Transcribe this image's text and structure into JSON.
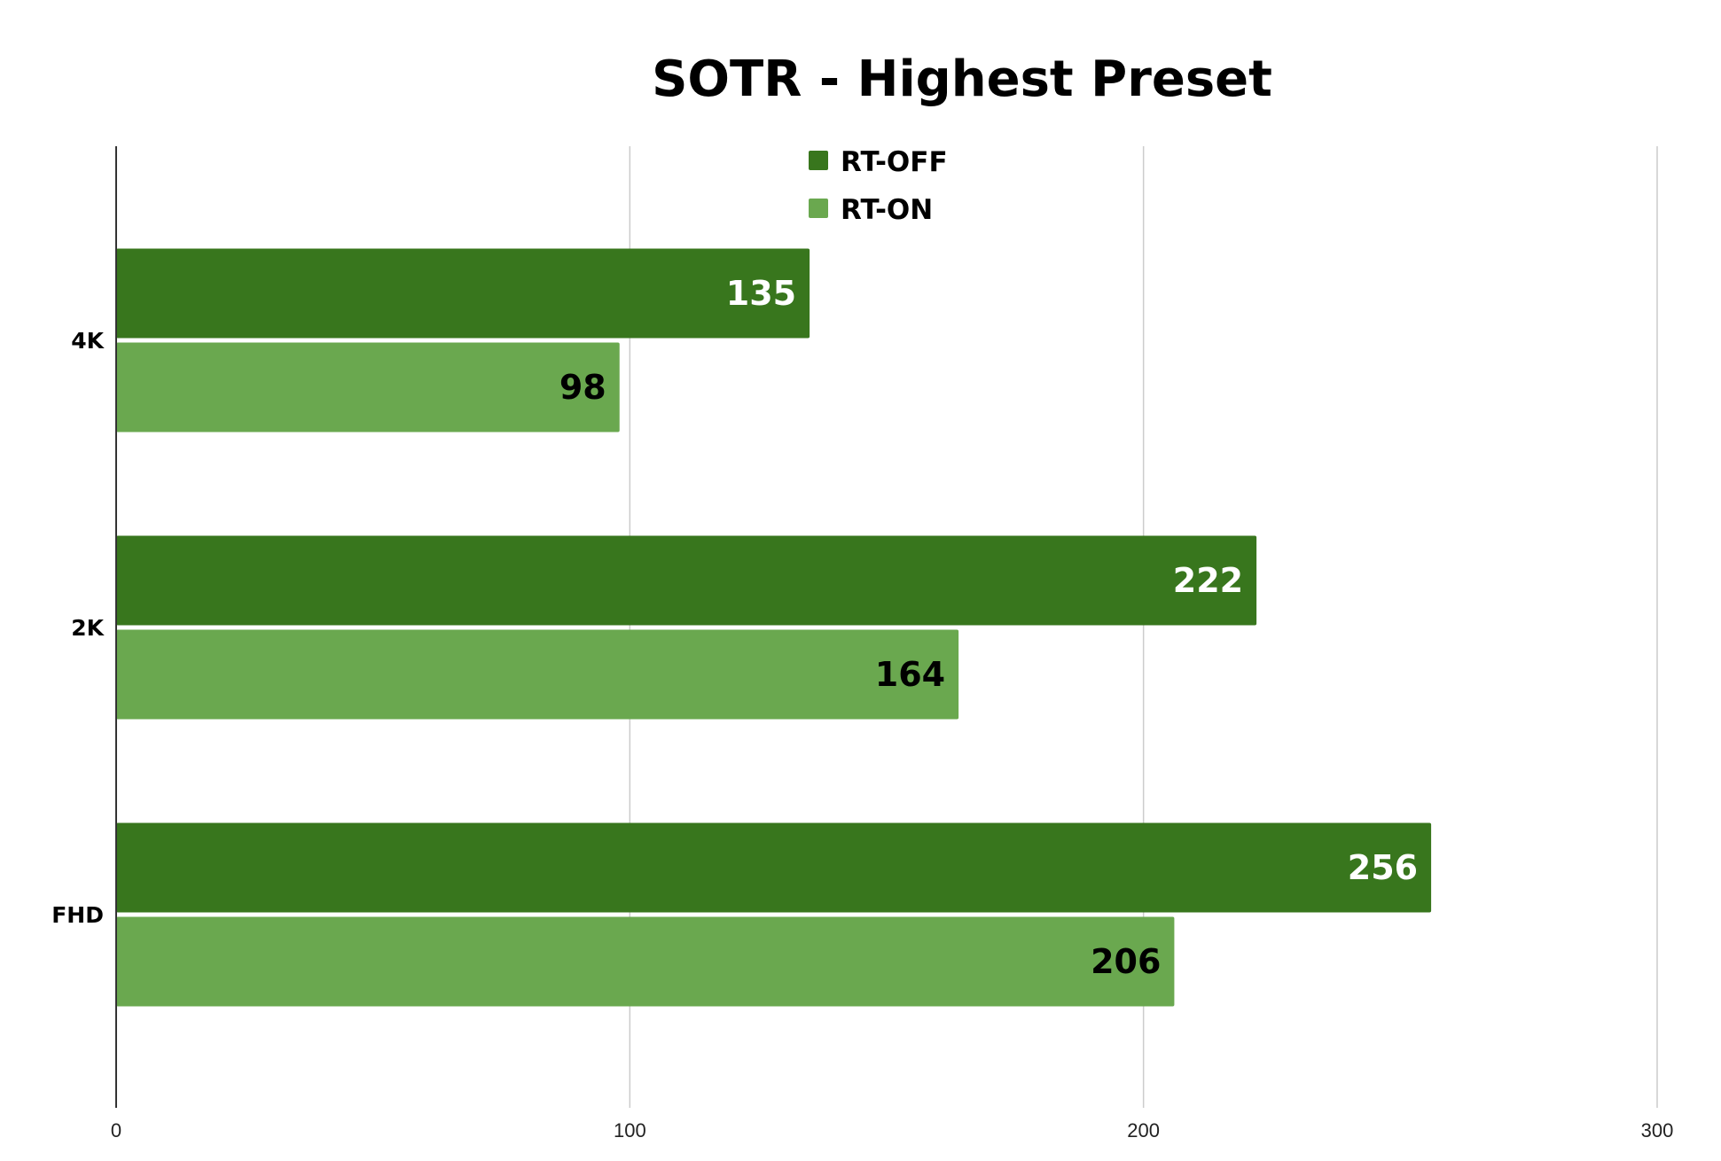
{
  "chart_data": {
    "type": "bar",
    "orientation": "horizontal",
    "title": "SOTR - Highest Preset",
    "xlabel": "",
    "ylabel": "",
    "categories": [
      "4K",
      "2K",
      "FHD"
    ],
    "series": [
      {
        "name": "RT-OFF",
        "values": [
          135,
          222,
          256
        ],
        "color": "#38761d",
        "label_color": "#ffffff"
      },
      {
        "name": "RT-ON",
        "values": [
          98,
          164,
          206
        ],
        "color": "#6aa84f",
        "label_color": "#000000"
      }
    ],
    "xlim": [
      0,
      300
    ],
    "x_ticks": [
      0,
      100,
      200,
      300
    ],
    "grid": "vertical",
    "legend_position": "top-center",
    "data_labels": true
  }
}
